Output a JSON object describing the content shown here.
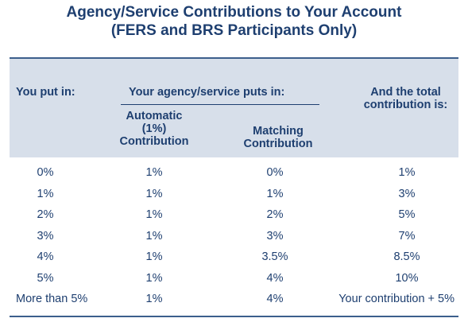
{
  "title": {
    "line1": "Agency/Service Contributions to Your Account",
    "line2": "(FERS and BRS Participants Only)"
  },
  "header": {
    "you_put_in": "You put in:",
    "agency_puts_in": "Your agency/service puts in:",
    "automatic_line1": "Automatic",
    "automatic_line2": "(1%)",
    "automatic_line3": "Contribution",
    "matching_line1": "Matching",
    "matching_line2": "Contribution",
    "total_line1": "And the total",
    "total_line2": "contribution is:"
  },
  "rows": [
    {
      "you": "0%",
      "automatic": "1%",
      "matching": "0%",
      "total": "1%"
    },
    {
      "you": "1%",
      "automatic": "1%",
      "matching": "1%",
      "total": "3%"
    },
    {
      "you": "2%",
      "automatic": "1%",
      "matching": "2%",
      "total": "5%"
    },
    {
      "you": "3%",
      "automatic": "1%",
      "matching": "3%",
      "total": "7%"
    },
    {
      "you": "4%",
      "automatic": "1%",
      "matching": "3.5%",
      "total": "8.5%"
    },
    {
      "you": "5%",
      "automatic": "1%",
      "matching": "4%",
      "total": "10%"
    },
    {
      "you": "More than 5%",
      "automatic": "1%",
      "matching": "4%",
      "total": "Your contribution + 5%"
    }
  ],
  "colors": {
    "text": "#1e3f70",
    "header_band": "#d7dfea",
    "rule": "#3c5f8c"
  }
}
